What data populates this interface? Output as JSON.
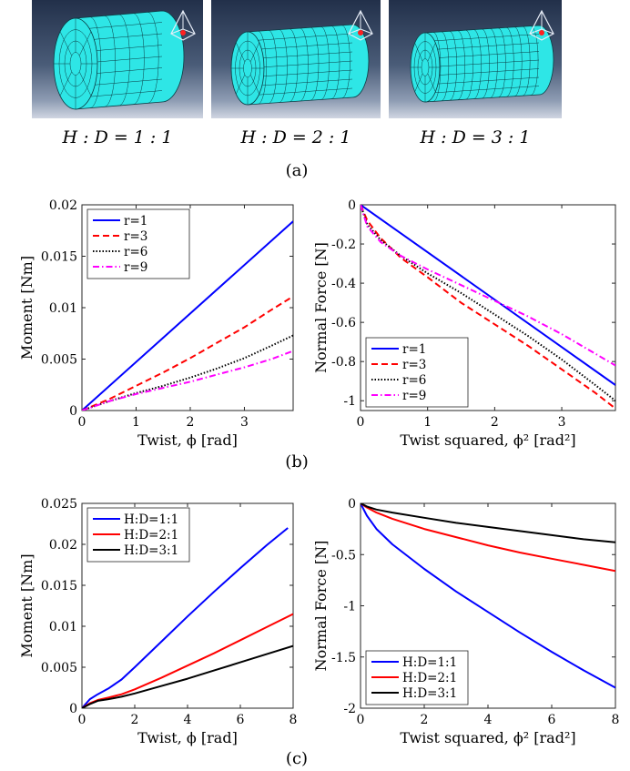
{
  "figure": {
    "panels_a": [
      {
        "label": "H : D = 1 : 1",
        "ratio": 1
      },
      {
        "label": "H : D = 2 : 1",
        "ratio": 2
      },
      {
        "label": "H : D = 3 : 1",
        "ratio": 3
      }
    ],
    "captions": {
      "a": "(a)",
      "b": "(b)",
      "c": "(c)"
    },
    "colors": {
      "mesh": "#2ee6e6",
      "mesh_line": "#0a3c44",
      "bg_top": "#22304a",
      "bg_bottom": "#d0d6e2"
    }
  },
  "chart_data": [
    {
      "id": "b-left",
      "type": "line",
      "title": "",
      "xlabel": "Twist, ϕ [rad]",
      "ylabel": "Moment [Nm]",
      "xlim": [
        0,
        3.9
      ],
      "ylim": [
        0,
        0.02
      ],
      "xticks": [
        0,
        1,
        2,
        3
      ],
      "xtick_labels": [
        "0",
        "1",
        "2",
        "3"
      ],
      "yticks": [
        0,
        0.005,
        0.01,
        0.015,
        0.02
      ],
      "ytick_labels": [
        "0",
        "0.005",
        "0.01",
        "0.015",
        "0.02"
      ],
      "legend_position": "top-left",
      "series": [
        {
          "name": "r=1",
          "color": "#0000ff",
          "dash": "solid",
          "x": [
            0,
            3.9
          ],
          "y": [
            0,
            0.0184
          ]
        },
        {
          "name": "r=3",
          "color": "#ff0000",
          "dash": "dashed",
          "x": [
            0,
            0.5,
            1,
            1.5,
            2,
            2.5,
            3,
            3.5,
            3.9
          ],
          "y": [
            0,
            0.0011,
            0.0024,
            0.0037,
            0.0051,
            0.0066,
            0.0081,
            0.0098,
            0.0111
          ]
        },
        {
          "name": "r=6",
          "color": "#000000",
          "dash": "dotted",
          "x": [
            0,
            0.5,
            1,
            1.5,
            2,
            2.5,
            3,
            3.5,
            3.9
          ],
          "y": [
            0,
            0.0009,
            0.0017,
            0.0024,
            0.0032,
            0.0041,
            0.0051,
            0.0063,
            0.0073
          ]
        },
        {
          "name": "r=9",
          "color": "#ff00ff",
          "dash": "dashdot",
          "x": [
            0,
            0.5,
            1,
            1.5,
            2,
            2.5,
            3,
            3.5,
            3.9
          ],
          "y": [
            0,
            0.0009,
            0.0016,
            0.0022,
            0.0028,
            0.0035,
            0.0042,
            0.005,
            0.0058
          ]
        }
      ]
    },
    {
      "id": "b-right",
      "type": "line",
      "title": "",
      "xlabel": "Twist squared, ϕ² [rad²]",
      "ylabel": "Normal Force [N]",
      "xlim": [
        0,
        3.8
      ],
      "ylim": [
        -1.05,
        0
      ],
      "xticks": [
        0,
        1,
        2,
        3
      ],
      "xtick_labels": [
        "0",
        "1",
        "2",
        "3"
      ],
      "yticks": [
        -1,
        -0.8,
        -0.6,
        -0.4,
        -0.2,
        0
      ],
      "ytick_labels": [
        "-1",
        "-0.8",
        "-0.6",
        "-0.4",
        "-0.2",
        "0"
      ],
      "legend_position": "bottom-left",
      "series": [
        {
          "name": "r=1",
          "color": "#0000ff",
          "dash": "solid",
          "x": [
            0,
            3.8
          ],
          "y": [
            0,
            -0.92
          ]
        },
        {
          "name": "r=3",
          "color": "#ff0000",
          "dash": "dashed",
          "x": [
            0,
            0.1,
            0.3,
            0.6,
            1,
            1.5,
            2,
            2.5,
            3,
            3.5,
            3.8
          ],
          "y": [
            0,
            -0.08,
            -0.17,
            -0.27,
            -0.37,
            -0.5,
            -0.61,
            -0.72,
            -0.84,
            -0.96,
            -1.04
          ]
        },
        {
          "name": "r=6",
          "color": "#000000",
          "dash": "dotted",
          "x": [
            0,
            0.1,
            0.3,
            0.6,
            1,
            1.5,
            2,
            2.5,
            3,
            3.5,
            3.8
          ],
          "y": [
            0,
            -0.1,
            -0.18,
            -0.26,
            -0.35,
            -0.45,
            -0.56,
            -0.67,
            -0.79,
            -0.92,
            -1.0
          ]
        },
        {
          "name": "r=9",
          "color": "#ff00ff",
          "dash": "dashdot",
          "x": [
            0,
            0.1,
            0.3,
            0.6,
            1,
            1.5,
            2,
            2.5,
            3,
            3.5,
            3.8
          ],
          "y": [
            0,
            -0.11,
            -0.19,
            -0.26,
            -0.33,
            -0.41,
            -0.49,
            -0.57,
            -0.66,
            -0.76,
            -0.82
          ]
        }
      ]
    },
    {
      "id": "c-left",
      "type": "line",
      "title": "",
      "xlabel": "Twist, ϕ [rad]",
      "ylabel": "Moment [Nm]",
      "xlim": [
        0,
        8
      ],
      "ylim": [
        0,
        0.025
      ],
      "xticks": [
        0,
        2,
        4,
        6,
        8
      ],
      "xtick_labels": [
        "0",
        "2",
        "4",
        "6",
        "8"
      ],
      "yticks": [
        0,
        0.005,
        0.01,
        0.015,
        0.02,
        0.025
      ],
      "ytick_labels": [
        "0",
        "0.005",
        "0.01",
        "0.015",
        "0.02",
        "0.025"
      ],
      "legend_position": "top-left",
      "series": [
        {
          "name": "H:D=1:1",
          "color": "#0000ff",
          "dash": "solid",
          "x": [
            0,
            0.3,
            0.6,
            1,
            1.5,
            2,
            3,
            4,
            5,
            6,
            7,
            7.8
          ],
          "y": [
            0,
            0.0011,
            0.0017,
            0.0024,
            0.0035,
            0.005,
            0.0081,
            0.0112,
            0.0142,
            0.0171,
            0.0199,
            0.022
          ]
        },
        {
          "name": "H:D=2:1",
          "color": "#ff0000",
          "dash": "solid",
          "x": [
            0,
            0.3,
            0.6,
            1,
            1.5,
            2,
            3,
            4,
            5,
            6,
            7,
            8
          ],
          "y": [
            0,
            0.0006,
            0.001,
            0.0013,
            0.0017,
            0.0023,
            0.0037,
            0.0052,
            0.0067,
            0.0083,
            0.0099,
            0.0115
          ]
        },
        {
          "name": "H:D=3:1",
          "color": "#000000",
          "dash": "solid",
          "x": [
            0,
            0.3,
            0.6,
            1,
            1.5,
            2,
            3,
            4,
            5,
            6,
            7,
            8
          ],
          "y": [
            0,
            0.0005,
            0.0009,
            0.0011,
            0.0014,
            0.0018,
            0.0027,
            0.0036,
            0.0046,
            0.0056,
            0.0066,
            0.0076
          ]
        }
      ]
    },
    {
      "id": "c-right",
      "type": "line",
      "title": "",
      "xlabel": "Twist squared, ϕ² [rad²]",
      "ylabel": "Normal Force [N]",
      "xlim": [
        0,
        8
      ],
      "ylim": [
        -2,
        0
      ],
      "xticks": [
        0,
        2,
        4,
        6,
        8
      ],
      "xtick_labels": [
        "0",
        "2",
        "4",
        "6",
        "8"
      ],
      "yticks": [
        -2,
        -1.5,
        -1,
        -0.5,
        0
      ],
      "ytick_labels": [
        "-2",
        "-1.5",
        "-1",
        "-0.5",
        "0"
      ],
      "legend_position": "bottom-left",
      "series": [
        {
          "name": "H:D=1:1",
          "color": "#0000ff",
          "dash": "solid",
          "x": [
            0,
            0.2,
            0.5,
            1,
            2,
            3,
            4,
            5,
            6,
            7,
            8
          ],
          "y": [
            0,
            -0.12,
            -0.25,
            -0.4,
            -0.64,
            -0.86,
            -1.06,
            -1.26,
            -1.45,
            -1.63,
            -1.8
          ]
        },
        {
          "name": "H:D=2:1",
          "color": "#ff0000",
          "dash": "solid",
          "x": [
            0,
            0.2,
            0.5,
            1,
            2,
            3,
            4,
            5,
            6,
            7,
            8
          ],
          "y": [
            0,
            -0.04,
            -0.09,
            -0.15,
            -0.25,
            -0.33,
            -0.41,
            -0.48,
            -0.54,
            -0.6,
            -0.66
          ]
        },
        {
          "name": "H:D=3:1",
          "color": "#000000",
          "dash": "solid",
          "x": [
            0,
            0.2,
            0.5,
            1,
            2,
            3,
            4,
            5,
            6,
            7,
            8
          ],
          "y": [
            0,
            -0.03,
            -0.06,
            -0.09,
            -0.14,
            -0.19,
            -0.23,
            -0.27,
            -0.31,
            -0.35,
            -0.38
          ]
        }
      ]
    }
  ]
}
